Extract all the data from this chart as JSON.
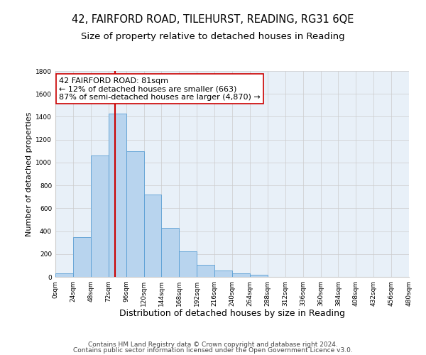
{
  "title": "42, FAIRFORD ROAD, TILEHURST, READING, RG31 6QE",
  "subtitle": "Size of property relative to detached houses in Reading",
  "xlabel": "Distribution of detached houses by size in Reading",
  "ylabel": "Number of detached properties",
  "bar_values": [
    30,
    350,
    1060,
    1430,
    1100,
    720,
    430,
    225,
    105,
    55,
    30,
    20,
    0,
    0,
    0,
    0,
    0,
    0,
    0,
    0
  ],
  "bin_edges": [
    0,
    24,
    48,
    72,
    96,
    120,
    144,
    168,
    192,
    216,
    240,
    264,
    288,
    312,
    336,
    360,
    384,
    408,
    432,
    456,
    480
  ],
  "tick_labels": [
    "0sqm",
    "24sqm",
    "48sqm",
    "72sqm",
    "96sqm",
    "120sqm",
    "144sqm",
    "168sqm",
    "192sqm",
    "216sqm",
    "240sqm",
    "264sqm",
    "288sqm",
    "312sqm",
    "336sqm",
    "360sqm",
    "384sqm",
    "408sqm",
    "432sqm",
    "456sqm",
    "480sqm"
  ],
  "bar_color": "#b8d4ee",
  "bar_edge_color": "#5a9fd4",
  "vline_x": 81,
  "vline_color": "#cc0000",
  "annotation_line1": "42 FAIRFORD ROAD: 81sqm",
  "annotation_line2": "← 12% of detached houses are smaller (663)",
  "annotation_line3": "87% of semi-detached houses are larger (4,870) →",
  "annotation_box_color": "#ffffff",
  "annotation_box_edge": "#cc0000",
  "ylim": [
    0,
    1800
  ],
  "yticks": [
    0,
    200,
    400,
    600,
    800,
    1000,
    1200,
    1400,
    1600,
    1800
  ],
  "grid_color": "#cccccc",
  "bg_color": "#e8f0f8",
  "footer_line1": "Contains HM Land Registry data © Crown copyright and database right 2024.",
  "footer_line2": "Contains public sector information licensed under the Open Government Licence v3.0.",
  "title_fontsize": 10.5,
  "subtitle_fontsize": 9.5,
  "xlabel_fontsize": 9,
  "ylabel_fontsize": 8,
  "tick_fontsize": 6.5,
  "annotation_fontsize": 8,
  "footer_fontsize": 6.5
}
